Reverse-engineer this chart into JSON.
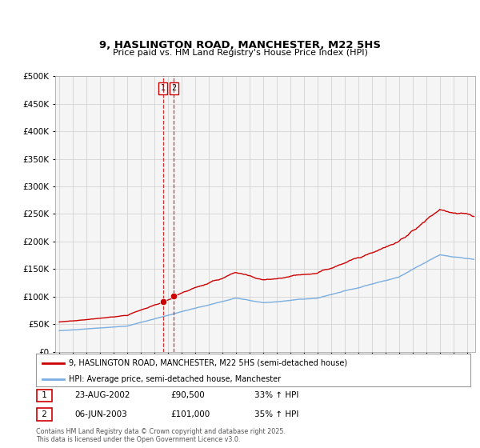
{
  "title": "9, HASLINGTON ROAD, MANCHESTER, M22 5HS",
  "subtitle": "Price paid vs. HM Land Registry's House Price Index (HPI)",
  "legend_label_1": "9, HASLINGTON ROAD, MANCHESTER, M22 5HS (semi-detached house)",
  "legend_label_2": "HPI: Average price, semi-detached house, Manchester",
  "transaction_1_date": "23-AUG-2002",
  "transaction_1_price": "£90,500",
  "transaction_1_hpi": "33% ↑ HPI",
  "transaction_2_date": "06-JUN-2003",
  "transaction_2_price": "£101,000",
  "transaction_2_hpi": "35% ↑ HPI",
  "footer": "Contains HM Land Registry data © Crown copyright and database right 2025.\nThis data is licensed under the Open Government Licence v3.0.",
  "line_color_1": "#cc0000",
  "line_color_2": "#7aade0",
  "marker_color_1": "#cc0000",
  "background_color": "#ffffff",
  "grid_color": "#cccccc",
  "ylim_min": 0,
  "ylim_max": 500000,
  "year_start": 1995,
  "year_end": 2025,
  "transaction_dates_decimal": [
    2002.645,
    2003.43
  ],
  "transaction_prices": [
    90500,
    101000
  ],
  "vline_color": "#cc0000"
}
